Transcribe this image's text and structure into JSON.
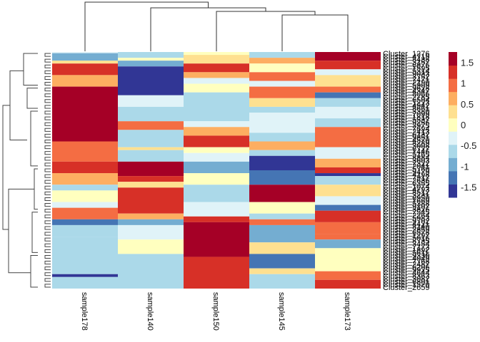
{
  "chart_data": {
    "type": "heatmap",
    "title": "",
    "columns": [
      "sample178",
      "sample140",
      "sample150",
      "sample145",
      "sample173"
    ],
    "column_dendrogram": "sample178 | (sample140 | (sample150 | (sample145, sample173)))",
    "row_labels_visible": {
      "first": "Cluster_1276",
      "last": "Cluster_2659"
    },
    "row_label_prefix": "Cluster_",
    "legend": {
      "ticks": [
        1.5,
        1,
        0.5,
        0,
        -0.5,
        -1,
        -1.5
      ],
      "range": [
        -1.75,
        1.75
      ],
      "palette": [
        "#313695",
        "#4575B4",
        "#74ADD1",
        "#ABD9E9",
        "#E0F3F8",
        "#FFFFBF",
        "#FEE090",
        "#FDAE61",
        "#F46D43",
        "#D73027",
        "#A50026"
      ]
    },
    "segments": [
      {
        "col": "sample178",
        "bands": [
          [
            0,
            -0.25,
            0.4
          ],
          [
            0.4,
            -0.8,
            3
          ],
          [
            3,
            0.2,
            4
          ],
          [
            4,
            1.2,
            8
          ],
          [
            8,
            0.6,
            12
          ],
          [
            12,
            1.75,
            31
          ],
          [
            31,
            0.8,
            38
          ],
          [
            38,
            1.2,
            42
          ],
          [
            42,
            0.6,
            46
          ],
          [
            46,
            -0.6,
            48
          ],
          [
            48,
            0.1,
            52
          ],
          [
            52,
            -0.3,
            54
          ],
          [
            54,
            1.1,
            58
          ],
          [
            58,
            -1.4,
            60
          ],
          [
            60,
            -0.7,
            64
          ],
          [
            64,
            -0.55,
            77
          ],
          [
            77,
            -1.6,
            78
          ],
          [
            78,
            -0.7,
            82
          ]
        ]
      },
      {
        "col": "sample140",
        "bands": [
          [
            0,
            -0.6,
            2
          ],
          [
            2,
            0.1,
            3
          ],
          [
            3,
            -0.9,
            5
          ],
          [
            5,
            -1.6,
            15
          ],
          [
            15,
            -0.3,
            19
          ],
          [
            19,
            -0.6,
            24
          ],
          [
            24,
            0.8,
            27
          ],
          [
            27,
            -0.5,
            33
          ],
          [
            33,
            0.2,
            34
          ],
          [
            34,
            -0.5,
            38
          ],
          [
            38,
            1.75,
            43
          ],
          [
            43,
            1.2,
            45
          ],
          [
            45,
            0.3,
            47
          ],
          [
            47,
            1.4,
            56
          ],
          [
            56,
            0.5,
            58
          ],
          [
            58,
            -0.8,
            60
          ],
          [
            60,
            -0.3,
            65
          ],
          [
            65,
            0.1,
            70
          ],
          [
            70,
            -0.7,
            82
          ]
        ]
      },
      {
        "col": "sample150",
        "bands": [
          [
            0,
            0.1,
            1
          ],
          [
            1,
            0.4,
            4
          ],
          [
            4,
            1.3,
            7
          ],
          [
            7,
            0.6,
            9
          ],
          [
            9,
            -0.3,
            11
          ],
          [
            11,
            0.15,
            14
          ],
          [
            14,
            -0.6,
            24
          ],
          [
            24,
            -0.3,
            26
          ],
          [
            26,
            0.5,
            29
          ],
          [
            29,
            1.2,
            33
          ],
          [
            33,
            0.1,
            35
          ],
          [
            35,
            -0.3,
            38
          ],
          [
            38,
            -0.8,
            42
          ],
          [
            42,
            0.1,
            46
          ],
          [
            46,
            -0.7,
            52
          ],
          [
            52,
            -0.4,
            57
          ],
          [
            57,
            1.2,
            59
          ],
          [
            59,
            1.75,
            71
          ],
          [
            71,
            1.2,
            82
          ]
        ]
      },
      {
        "col": "sample145",
        "bands": [
          [
            0,
            -0.7,
            2
          ],
          [
            2,
            0.6,
            4
          ],
          [
            4,
            0.1,
            7
          ],
          [
            7,
            0.8,
            10
          ],
          [
            10,
            -0.3,
            12
          ],
          [
            12,
            0.8,
            16
          ],
          [
            16,
            0.4,
            19
          ],
          [
            19,
            -0.6,
            21
          ],
          [
            21,
            -0.3,
            28
          ],
          [
            28,
            -0.6,
            31
          ],
          [
            31,
            0.7,
            34
          ],
          [
            34,
            -0.55,
            36
          ],
          [
            36,
            -1.6,
            41
          ],
          [
            41,
            -1.2,
            46
          ],
          [
            46,
            1.75,
            52
          ],
          [
            52,
            0.1,
            56
          ],
          [
            56,
            -0.5,
            58
          ],
          [
            58,
            1.1,
            60
          ],
          [
            60,
            -0.9,
            66
          ],
          [
            66,
            0.2,
            70
          ],
          [
            70,
            -1.3,
            75
          ],
          [
            75,
            0.4,
            77
          ],
          [
            77,
            -0.6,
            82
          ]
        ]
      },
      {
        "col": "sample173",
        "bands": [
          [
            0,
            1.75,
            3
          ],
          [
            3,
            1.4,
            6
          ],
          [
            6,
            -0.3,
            8
          ],
          [
            8,
            0.3,
            12
          ],
          [
            12,
            1.1,
            14
          ],
          [
            14,
            -1.2,
            16
          ],
          [
            16,
            -0.6,
            19
          ],
          [
            19,
            -0.3,
            23
          ],
          [
            23,
            -0.6,
            26
          ],
          [
            26,
            0.8,
            33
          ],
          [
            33,
            -0.3,
            37
          ],
          [
            37,
            0.5,
            40
          ],
          [
            40,
            1.2,
            42
          ],
          [
            42,
            -1.6,
            43
          ],
          [
            43,
            -0.5,
            46
          ],
          [
            46,
            0.4,
            50
          ],
          [
            50,
            -0.4,
            53
          ],
          [
            53,
            -1.2,
            55
          ],
          [
            55,
            1.4,
            59
          ],
          [
            59,
            0.9,
            63
          ],
          [
            63,
            1.1,
            65
          ],
          [
            65,
            -0.9,
            68
          ],
          [
            68,
            0.1,
            72
          ],
          [
            72,
            0.0,
            76
          ],
          [
            76,
            0.8,
            79
          ],
          [
            79,
            1.2,
            82
          ]
        ]
      }
    ]
  }
}
